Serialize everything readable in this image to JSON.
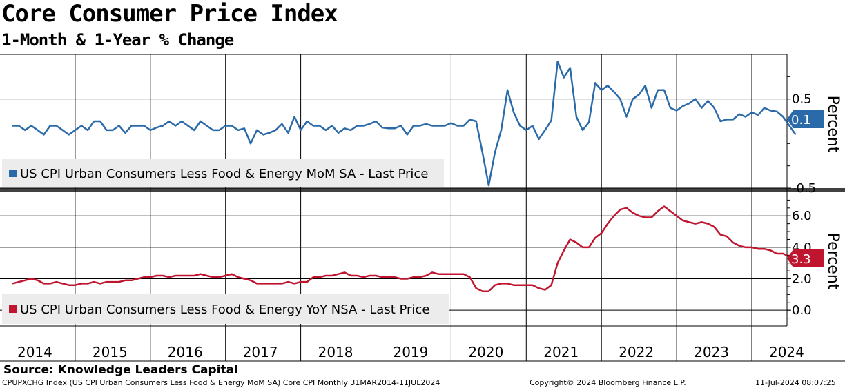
{
  "title": "Core Consumer Price Index",
  "subtitle": "1-Month & 1-Year % Change",
  "source": "Source: Knowledge Leaders Capital",
  "footer": {
    "left": "CPUPXCHG Index (US CPI Urban Consumers Less Food & Energy MoM SA) Core CPI  Monthly 31MAR2014-11JUL2024",
    "center": "Copyright© 2024 Bloomberg Finance L.P.",
    "right": "11-Jul-2024 08:07:25"
  },
  "colors": {
    "mom": "#2b6aa8",
    "yoy": "#c0152f",
    "grid": "#000000",
    "legend_bg": "#ececec"
  },
  "chart_data": [
    {
      "type": "line",
      "ylabel": "Percent",
      "ylim": [
        -0.5,
        1.0
      ],
      "yticks": [
        -0.5,
        0.5
      ],
      "yticklabels": [
        "-0.5",
        "0.5"
      ],
      "grid": true,
      "legend": "bottom-left",
      "last_value_label": "0.1",
      "series": [
        {
          "name": "US CPI Urban Consumers Less Food & Energy MoM SA - Last Price",
          "start": "2014-03",
          "values": [
            0.2,
            0.2,
            0.15,
            0.2,
            0.15,
            0.1,
            0.2,
            0.2,
            0.15,
            0.1,
            0.15,
            0.2,
            0.15,
            0.25,
            0.25,
            0.15,
            0.15,
            0.2,
            0.12,
            0.2,
            0.2,
            0.2,
            0.15,
            0.18,
            0.2,
            0.25,
            0.2,
            0.25,
            0.2,
            0.15,
            0.25,
            0.2,
            0.15,
            0.15,
            0.2,
            0.2,
            0.15,
            0.17,
            0.0,
            0.15,
            0.1,
            0.12,
            0.15,
            0.22,
            0.12,
            0.3,
            0.15,
            0.25,
            0.2,
            0.2,
            0.15,
            0.2,
            0.12,
            0.17,
            0.15,
            0.2,
            0.2,
            0.22,
            0.25,
            0.18,
            0.17,
            0.17,
            0.2,
            0.1,
            0.2,
            0.2,
            0.22,
            0.2,
            0.2,
            0.2,
            0.23,
            0.2,
            0.2,
            0.27,
            0.25,
            -0.1,
            -0.47,
            -0.1,
            0.15,
            0.6,
            0.35,
            0.2,
            0.15,
            0.2,
            0.05,
            0.15,
            0.26,
            0.92,
            0.74,
            0.85,
            0.3,
            0.15,
            0.24,
            0.68,
            0.6,
            0.65,
            0.58,
            0.5,
            0.3,
            0.5,
            0.55,
            0.65,
            0.4,
            0.6,
            0.6,
            0.4,
            0.37,
            0.42,
            0.45,
            0.5,
            0.4,
            0.48,
            0.4,
            0.25,
            0.27,
            0.27,
            0.33,
            0.3,
            0.35,
            0.32,
            0.4,
            0.37,
            0.36,
            0.3,
            0.2,
            0.1
          ]
        }
      ]
    },
    {
      "type": "line",
      "ylabel": "Percent",
      "ylim": [
        -1.0,
        7.5
      ],
      "yticks": [
        0.0,
        2.0,
        4.0,
        6.0
      ],
      "yticklabels": [
        "0.0",
        "2.0",
        "4.0",
        "6.0"
      ],
      "grid": true,
      "legend": "bottom-left",
      "last_value_label": "3.3",
      "series": [
        {
          "name": "US CPI Urban Consumers Less Food & Energy YoY NSA - Last Price",
          "start": "2014-03",
          "values": [
            1.7,
            1.8,
            1.9,
            2.0,
            1.9,
            1.7,
            1.7,
            1.8,
            1.7,
            1.6,
            1.6,
            1.7,
            1.7,
            1.8,
            1.7,
            1.8,
            1.8,
            1.8,
            1.9,
            1.9,
            2.0,
            2.1,
            2.1,
            2.2,
            2.2,
            2.1,
            2.2,
            2.2,
            2.2,
            2.2,
            2.3,
            2.2,
            2.1,
            2.1,
            2.2,
            2.3,
            2.1,
            2.0,
            1.9,
            1.7,
            1.7,
            1.7,
            1.7,
            1.7,
            1.8,
            1.7,
            1.8,
            1.8,
            2.1,
            2.1,
            2.2,
            2.2,
            2.3,
            2.4,
            2.2,
            2.2,
            2.1,
            2.2,
            2.2,
            2.1,
            2.1,
            2.1,
            2.0,
            2.0,
            2.1,
            2.1,
            2.2,
            2.4,
            2.3,
            2.3,
            2.3,
            2.3,
            2.3,
            2.1,
            1.4,
            1.2,
            1.2,
            1.6,
            1.7,
            1.7,
            1.6,
            1.6,
            1.6,
            1.6,
            1.4,
            1.3,
            1.6,
            3.0,
            3.8,
            4.5,
            4.3,
            4.0,
            4.0,
            4.6,
            4.9,
            5.5,
            6.0,
            6.4,
            6.5,
            6.2,
            6.0,
            5.9,
            5.9,
            6.3,
            6.6,
            6.3,
            6.0,
            5.7,
            5.6,
            5.5,
            5.6,
            5.5,
            5.3,
            4.8,
            4.7,
            4.3,
            4.1,
            4.0,
            4.0,
            3.9,
            3.9,
            3.8,
            3.6,
            3.6,
            3.4,
            3.3
          ]
        }
      ]
    }
  ],
  "x_axis": {
    "categories": [
      "2014",
      "2015",
      "2016",
      "2017",
      "2018",
      "2019",
      "2020",
      "2021",
      "2022",
      "2023",
      "2024"
    ]
  }
}
